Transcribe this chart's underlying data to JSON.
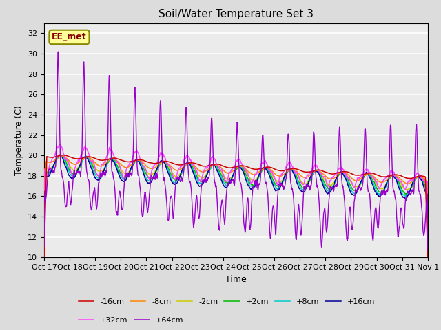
{
  "title": "Soil/Water Temperature Set 3",
  "xlabel": "Time",
  "ylabel": "Temperature (C)",
  "ylim": [
    10,
    33
  ],
  "yticks": [
    10,
    12,
    14,
    16,
    18,
    20,
    22,
    24,
    26,
    28,
    30,
    32
  ],
  "xlim": [
    0,
    15
  ],
  "xtick_labels": [
    "Oct 17",
    "Oct 18",
    "Oct 19",
    "Oct 20",
    "Oct 21",
    "Oct 22",
    "Oct 23",
    "Oct 24",
    "Oct 25",
    "Oct 26",
    "Oct 27",
    "Oct 28",
    "Oct 29",
    "Oct 30",
    "Oct 31",
    "Nov 1"
  ],
  "annotation_text": "EE_met",
  "bg_color": "#dcdcdc",
  "plot_bg_color": "#ebebeb",
  "grid_color": "#ffffff",
  "series": [
    {
      "label": "-16cm",
      "color": "#cc0000",
      "zorder": 5
    },
    {
      "label": "-8cm",
      "color": "#ff8800",
      "zorder": 4
    },
    {
      "label": "-2cm",
      "color": "#cccc00",
      "zorder": 3
    },
    {
      "label": "+2cm",
      "color": "#00bb00",
      "zorder": 3
    },
    {
      "label": "+8cm",
      "color": "#00cccc",
      "zorder": 3
    },
    {
      "label": "+16cm",
      "color": "#000099",
      "zorder": 3
    },
    {
      "label": "+32cm",
      "color": "#ff44ff",
      "zorder": 4
    },
    {
      "label": "+64cm",
      "color": "#9900cc",
      "zorder": 6
    }
  ]
}
